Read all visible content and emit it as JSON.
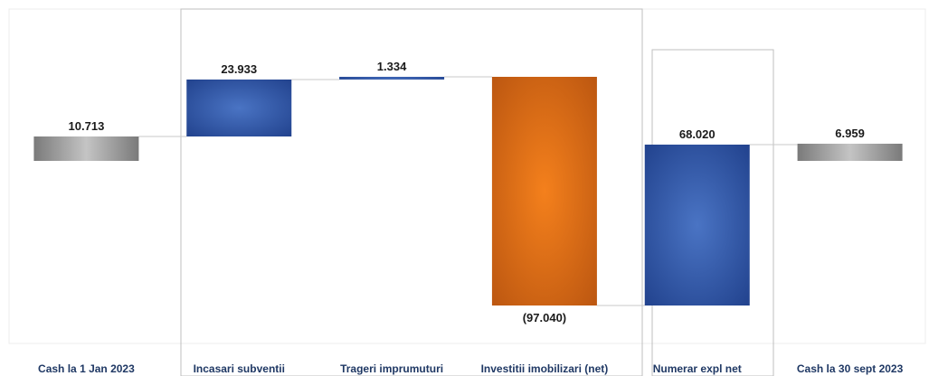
{
  "chart_data": {
    "type": "waterfall",
    "title": "",
    "categories": [
      "Cash la 1 Jan 2023",
      "Incasari subventii",
      "Trageri imprumuturi",
      "Investitii imobilizari (net)",
      "Numerar expl net",
      "Cash la 30 sept 2023"
    ],
    "values": [
      10713,
      23933,
      1334,
      -97040,
      68020,
      6959
    ],
    "labels": [
      "10.713",
      "23.933",
      "1.334",
      "(97.040)",
      "68.020",
      "6.959"
    ],
    "kinds": [
      "total",
      "increase",
      "increase",
      "decrease",
      "increase",
      "total"
    ],
    "groups": [
      {
        "categories": [
          1,
          2,
          3
        ]
      },
      {
        "categories": [
          4
        ]
      }
    ],
    "ylim": [
      -70000,
      42000
    ],
    "grid": false,
    "legend": "none",
    "colors": {
      "total": "#8c8c8c",
      "increase": "#2f56a6",
      "decrease": "#e8701a",
      "connector": "#c8c8c8",
      "group_box": "#bfbfbf",
      "category_text": "#1f3864"
    }
  }
}
